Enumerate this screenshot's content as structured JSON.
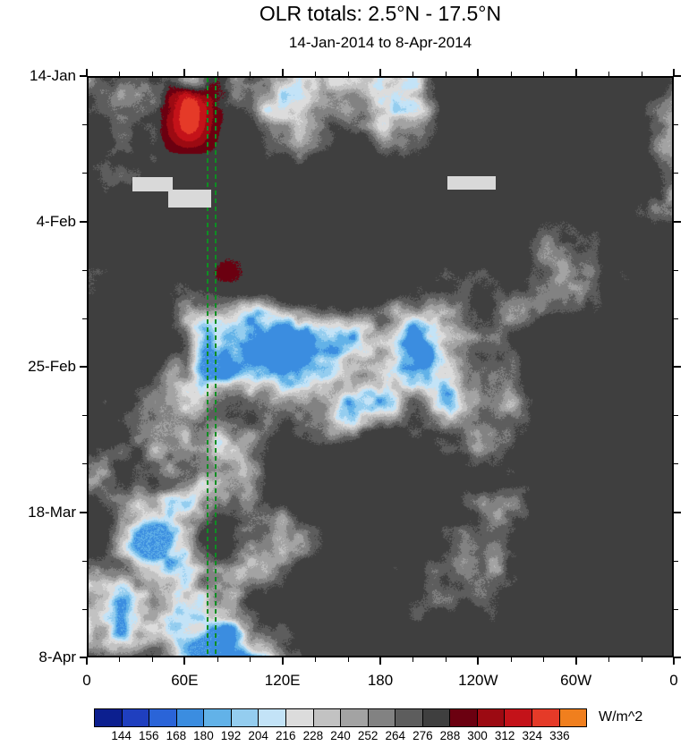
{
  "chart_data": {
    "type": "heatmap",
    "title": "OLR totals: 2.5°N - 17.5°N",
    "subtitle": "14-Jan-2014 to 8-Apr-2014",
    "x_axis": {
      "ticks": [
        "0",
        "60E",
        "120E",
        "180",
        "120W",
        "60W",
        "0"
      ]
    },
    "y_axis": {
      "ticks": [
        "14-Jan",
        "4-Feb",
        "25-Feb",
        "18-Mar",
        "8-Apr"
      ]
    },
    "colorbar": {
      "units": "W/m^2",
      "levels": [
        144,
        156,
        168,
        180,
        192,
        204,
        216,
        228,
        240,
        252,
        264,
        276,
        288,
        300,
        312,
        324,
        336
      ],
      "colors": [
        "#0c1f8f",
        "#1f3fbf",
        "#2a64d8",
        "#3b8de0",
        "#62b2e8",
        "#94cdef",
        "#c3e3f7",
        "#dcdcdc",
        "#c2c2c2",
        "#a3a3a3",
        "#828282",
        "#5d5d5d",
        "#3f3f3f",
        "#6b0010",
        "#9c0a12",
        "#c41219",
        "#e53a28",
        "#f07f1e"
      ]
    },
    "annotations": {
      "vertical_dashed_lines": {
        "color": "#0d8f22",
        "longitudes": [
          73.5,
          78.5
        ]
      },
      "data_gap_bars": {
        "color": "#d9d9d9",
        "rects": [
          {
            "x0": 0.075,
            "y0": 0.172,
            "x1": 0.145,
            "y1": 0.196
          },
          {
            "x0": 0.137,
            "y0": 0.194,
            "x1": 0.211,
            "y1": 0.224
          },
          {
            "x0": 0.615,
            "y0": 0.17,
            "x1": 0.697,
            "y1": 0.194
          }
        ]
      }
    }
  }
}
